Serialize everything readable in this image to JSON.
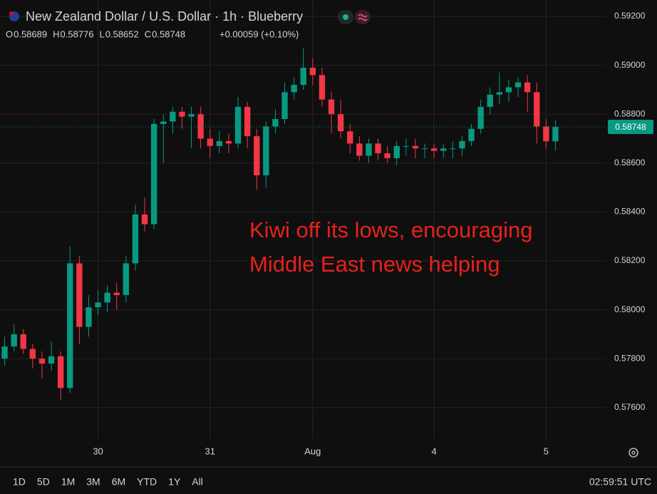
{
  "header": {
    "title": "New Zealand Dollar / U.S. Dollar · 1h · Blueberry",
    "ohlc": [
      {
        "label": "O",
        "value": "0.58689"
      },
      {
        "label": "H",
        "value": "0.58776"
      },
      {
        "label": "L",
        "value": "0.58652"
      },
      {
        "label": "C",
        "value": "0.58748"
      }
    ],
    "change": "+0.00059 (+0.10%)"
  },
  "chart_data": {
    "type": "candlestick",
    "annotation": [
      "Kiwi off its lows, encouraging",
      "Middle East news helping"
    ],
    "up_color": "#089981",
    "down_color": "#f23645",
    "annotation_color": "#e8211b",
    "grid": true,
    "categories": [
      null,
      null,
      null,
      null,
      null,
      null,
      null,
      null,
      null,
      null,
      "30",
      null,
      null,
      null,
      null,
      null,
      null,
      null,
      null,
      null,
      null,
      null,
      "31",
      null,
      null,
      null,
      null,
      null,
      null,
      null,
      null,
      null,
      null,
      "Aug",
      null,
      null,
      null,
      null,
      null,
      null,
      null,
      null,
      null,
      null,
      null,
      null,
      "4",
      null,
      null,
      null,
      null,
      null,
      null,
      null,
      null,
      null,
      null,
      null,
      "5",
      null
    ],
    "open": [
      0.578,
      0.5785,
      0.579,
      0.5784,
      0.578,
      0.5778,
      0.5781,
      0.5768,
      0.5819,
      0.5793,
      0.5801,
      0.5803,
      0.5807,
      0.5806,
      0.5819,
      0.5839,
      0.5835,
      0.5876,
      0.5877,
      0.5881,
      0.5879,
      0.588,
      0.587,
      0.5867,
      0.5869,
      0.5868,
      0.5883,
      0.5871,
      0.5855,
      0.5875,
      0.5878,
      0.5889,
      0.5892,
      0.5899,
      0.5896,
      0.5886,
      0.588,
      0.5873,
      0.5868,
      0.5863,
      0.5868,
      0.5864,
      0.5862,
      0.5867,
      0.5867,
      0.5866,
      0.5866,
      0.5865,
      0.5866,
      0.5866,
      0.5869,
      0.5874,
      0.5883,
      0.5888,
      0.5889,
      0.5891,
      0.5893,
      0.5889,
      0.5875,
      0.58689
    ],
    "high": [
      0.5789,
      0.5794,
      0.5792,
      0.5786,
      0.5783,
      0.5787,
      0.5783,
      0.5826,
      0.5822,
      0.5806,
      0.5808,
      0.581,
      0.5811,
      0.5822,
      0.5843,
      0.5846,
      0.5878,
      0.588,
      0.5883,
      0.5883,
      0.5883,
      0.5883,
      0.5874,
      0.5873,
      0.5872,
      0.5887,
      0.5885,
      0.5874,
      0.5877,
      0.5882,
      0.5893,
      0.5895,
      0.5907,
      0.5903,
      0.5899,
      0.5889,
      0.5886,
      0.5876,
      0.5871,
      0.587,
      0.587,
      0.5867,
      0.5869,
      0.587,
      0.587,
      0.5868,
      0.5868,
      0.5868,
      0.5869,
      0.5871,
      0.5876,
      0.5886,
      0.5891,
      0.5897,
      0.5894,
      0.5895,
      0.5896,
      0.5893,
      0.5878,
      0.58776
    ],
    "low": [
      0.5777,
      0.5783,
      0.5782,
      0.5776,
      0.5772,
      0.5775,
      0.5763,
      0.5766,
      0.5786,
      0.5789,
      0.5798,
      0.5799,
      0.58,
      0.5803,
      0.5816,
      0.5832,
      0.5833,
      0.586,
      0.5872,
      0.5874,
      0.5866,
      0.5866,
      0.5862,
      0.5864,
      0.5864,
      0.5866,
      0.5866,
      0.5849,
      0.585,
      0.5872,
      0.5876,
      0.5886,
      0.589,
      0.5892,
      0.5883,
      0.5872,
      0.587,
      0.5864,
      0.5861,
      0.586,
      0.5861,
      0.586,
      0.5859,
      0.5863,
      0.5862,
      0.5862,
      0.5862,
      0.5862,
      0.5862,
      0.5863,
      0.5867,
      0.5872,
      0.588,
      0.5884,
      0.5885,
      0.5887,
      0.5881,
      0.5868,
      0.5866,
      0.58652
    ],
    "close": [
      0.5785,
      0.579,
      0.5784,
      0.578,
      0.5778,
      0.5781,
      0.5768,
      0.5819,
      0.5793,
      0.5801,
      0.5803,
      0.5807,
      0.5806,
      0.5819,
      0.5839,
      0.5835,
      0.5876,
      0.5877,
      0.5881,
      0.5879,
      0.588,
      0.587,
      0.5867,
      0.5869,
      0.5868,
      0.5883,
      0.5871,
      0.5855,
      0.5875,
      0.5878,
      0.5889,
      0.5892,
      0.5899,
      0.5896,
      0.5886,
      0.588,
      0.5873,
      0.5868,
      0.5863,
      0.5868,
      0.5864,
      0.5862,
      0.5867,
      0.5867,
      0.5866,
      0.5866,
      0.5865,
      0.5866,
      0.5866,
      0.5869,
      0.5874,
      0.5883,
      0.5888,
      0.5889,
      0.5891,
      0.5893,
      0.5889,
      0.5875,
      0.58689,
      0.58748
    ],
    "ylim": [
      0.57474,
      0.59267
    ],
    "yticks": [
      {
        "value": 0.576,
        "label": "0.57600"
      },
      {
        "value": 0.578,
        "label": "0.57800"
      },
      {
        "value": 0.58,
        "label": "0.58000"
      },
      {
        "value": 0.582,
        "label": "0.58200"
      },
      {
        "value": 0.584,
        "label": "0.58400"
      },
      {
        "value": 0.586,
        "label": "0.58600"
      },
      {
        "value": 0.588,
        "label": "0.58800"
      },
      {
        "value": 0.59,
        "label": "0.59000"
      },
      {
        "value": 0.592,
        "label": "0.59200"
      }
    ]
  },
  "toolbar": {
    "ranges": [
      "1D",
      "5D",
      "1M",
      "3M",
      "6M",
      "YTD",
      "1Y",
      "All"
    ],
    "clock": "02:59:51 UTC"
  }
}
